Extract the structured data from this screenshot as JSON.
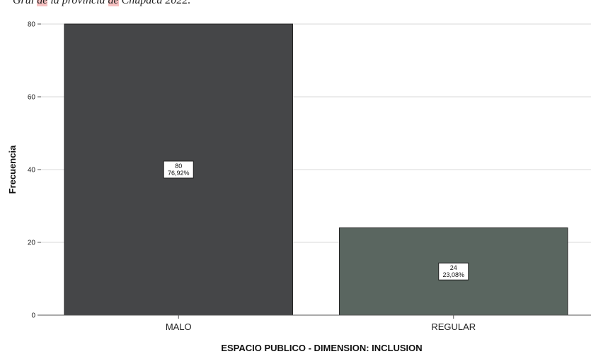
{
  "caption": {
    "part1": "Grul ",
    "part2": "de",
    "part3": " la provincia ",
    "part4": "de",
    "part5": " Chupaca 2022."
  },
  "chart_data": {
    "type": "bar",
    "categories": [
      "MALO",
      "REGULAR"
    ],
    "values": [
      80,
      24
    ],
    "data_labels": [
      {
        "count": "80",
        "percent": "76,92%"
      },
      {
        "count": "24",
        "percent": "23,08%"
      }
    ],
    "bar_colors": [
      "#454648",
      "#5a6660"
    ],
    "title": "",
    "xlabel": "ESPACIO PUBLICO - DIMENSION: INCLUSION",
    "ylabel": "Frecuencia",
    "ylim": [
      0,
      80
    ],
    "yticks": [
      0,
      20,
      40,
      60,
      80
    ],
    "grid": true,
    "legend": "none"
  }
}
